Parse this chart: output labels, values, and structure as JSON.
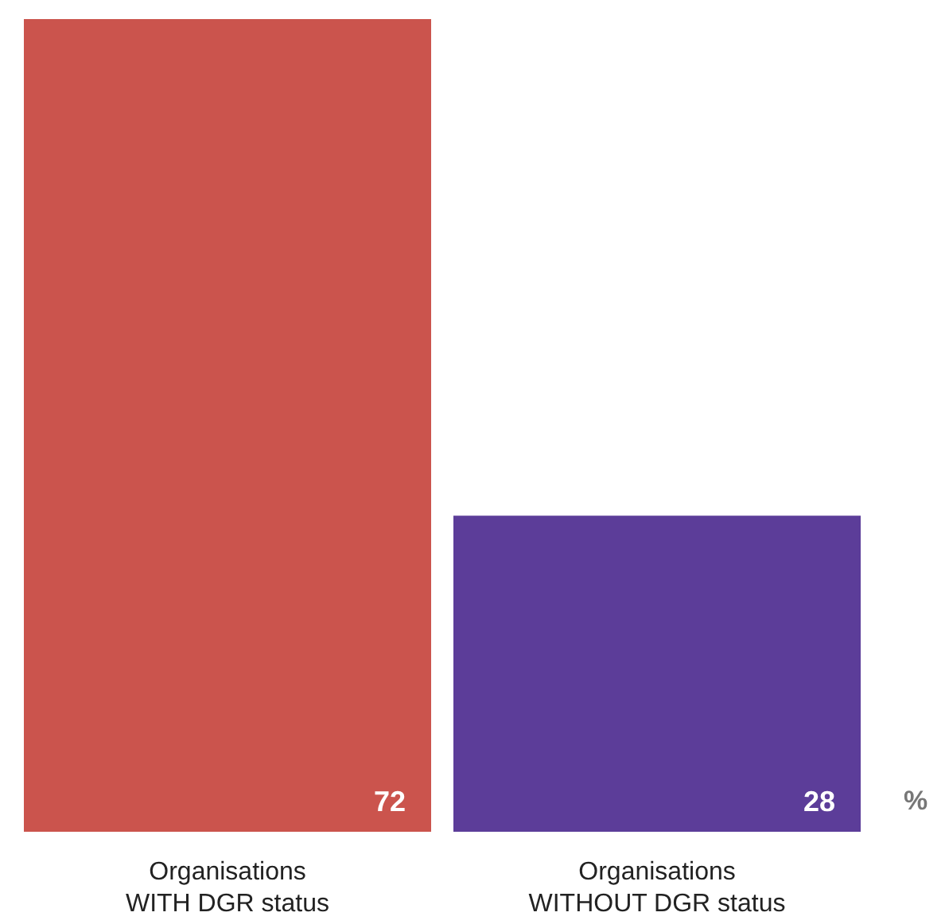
{
  "chart_data": {
    "type": "bar",
    "categories": [
      "Organisations\nWITH DGR status",
      "Organisations\nWITHOUT DGR status"
    ],
    "values": [
      72,
      28
    ],
    "colors": [
      "#cb544d",
      "#5c3d99"
    ],
    "data_labels": true,
    "annotations": [
      "%"
    ]
  }
}
